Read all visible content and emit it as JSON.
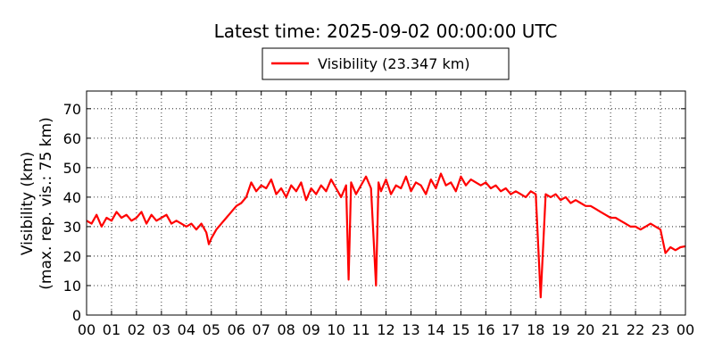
{
  "chart_data": {
    "type": "line",
    "title": "Latest time: 2025-09-02 00:00:00 UTC",
    "ylabel_line1": "Visibility (km)",
    "ylabel_line2": "(max. rep. vis.: 75 km)",
    "xlabel": "",
    "xlim": [
      0,
      24
    ],
    "ylim": [
      0,
      76
    ],
    "yticks": [
      0,
      10,
      20,
      30,
      40,
      50,
      60,
      70
    ],
    "xtick_labels": [
      "00",
      "01",
      "02",
      "03",
      "04",
      "05",
      "06",
      "07",
      "08",
      "09",
      "10",
      "11",
      "12",
      "13",
      "14",
      "15",
      "16",
      "17",
      "18",
      "19",
      "20",
      "21",
      "22",
      "23",
      "00"
    ],
    "grid": true,
    "legend_position": "top-center",
    "line_color": "#ff0000",
    "series": [
      {
        "name": "Visibility (23.347 km)",
        "x": [
          0.0,
          0.2,
          0.4,
          0.6,
          0.8,
          1.0,
          1.2,
          1.4,
          1.6,
          1.8,
          2.0,
          2.2,
          2.4,
          2.6,
          2.8,
          3.0,
          3.2,
          3.4,
          3.6,
          3.8,
          4.0,
          4.2,
          4.4,
          4.6,
          4.8,
          4.9,
          5.0,
          5.2,
          5.4,
          5.6,
          5.8,
          6.0,
          6.2,
          6.4,
          6.6,
          6.8,
          7.0,
          7.2,
          7.4,
          7.6,
          7.8,
          8.0,
          8.2,
          8.4,
          8.6,
          8.8,
          9.0,
          9.2,
          9.4,
          9.6,
          9.8,
          10.0,
          10.2,
          10.4,
          10.5,
          10.6,
          10.8,
          11.0,
          11.2,
          11.4,
          11.6,
          11.7,
          11.8,
          12.0,
          12.2,
          12.4,
          12.6,
          12.8,
          13.0,
          13.2,
          13.4,
          13.6,
          13.8,
          14.0,
          14.2,
          14.4,
          14.6,
          14.8,
          15.0,
          15.2,
          15.4,
          15.6,
          15.8,
          16.0,
          16.2,
          16.4,
          16.6,
          16.8,
          17.0,
          17.2,
          17.4,
          17.6,
          17.8,
          18.0,
          18.2,
          18.4,
          18.6,
          18.8,
          19.0,
          19.2,
          19.4,
          19.6,
          19.8,
          20.0,
          20.2,
          20.4,
          20.6,
          20.8,
          21.0,
          21.2,
          21.4,
          21.6,
          21.8,
          22.0,
          22.2,
          22.4,
          22.6,
          22.8,
          23.0,
          23.2,
          23.4,
          23.6,
          23.8,
          24.0
        ],
        "y": [
          32,
          31,
          34,
          30,
          33,
          32,
          35,
          33,
          34,
          32,
          33,
          35,
          31,
          34,
          32,
          33,
          34,
          31,
          32,
          31,
          30,
          31,
          29,
          31,
          28,
          24,
          26,
          29,
          31,
          33,
          35,
          37,
          38,
          40,
          45,
          42,
          44,
          43,
          46,
          41,
          43,
          40,
          44,
          42,
          45,
          39,
          43,
          41,
          44,
          42,
          46,
          43,
          40,
          44,
          12,
          45,
          41,
          44,
          47,
          43,
          10,
          45,
          42,
          46,
          41,
          44,
          43,
          47,
          42,
          45,
          44,
          41,
          46,
          43,
          48,
          44,
          45,
          42,
          47,
          44,
          46,
          45,
          44,
          45,
          43,
          44,
          42,
          43,
          41,
          42,
          41,
          40,
          42,
          41,
          6,
          41,
          40,
          41,
          39,
          40,
          38,
          39,
          38,
          37,
          37,
          36,
          35,
          34,
          33,
          33,
          32,
          31,
          30,
          30,
          29,
          30,
          31,
          30,
          29,
          21,
          23,
          22,
          23,
          23.347
        ]
      }
    ]
  }
}
